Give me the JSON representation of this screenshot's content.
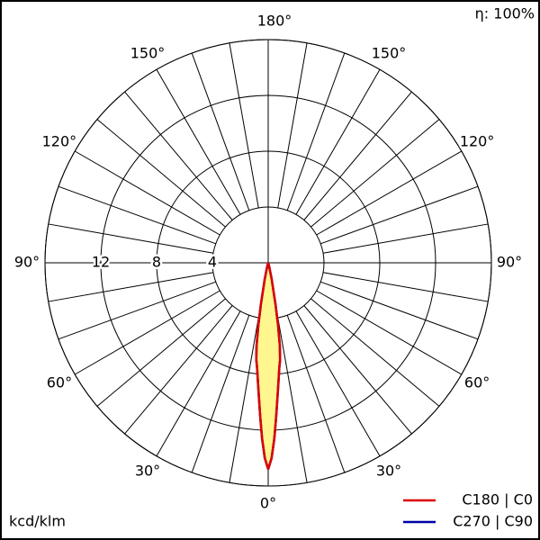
{
  "chart_data": {
    "type": "polar",
    "efficiency": "η: 100%",
    "unit": "kcd/klm",
    "rlim": [
      0,
      16
    ],
    "rticks": [
      4,
      8,
      12,
      16
    ],
    "rtick_labels": [
      "4",
      "8",
      "12",
      null
    ],
    "angle_ticks": [
      {
        "value": 0,
        "label": "0°"
      },
      {
        "value": 30,
        "label": "30°"
      },
      {
        "value": 60,
        "label": "60°"
      },
      {
        "value": 90,
        "label": "90°"
      },
      {
        "value": 120,
        "label": "120°"
      },
      {
        "value": 150,
        "label": "150°"
      },
      {
        "value": 180,
        "label": "180°"
      }
    ],
    "angles": [
      0,
      1,
      2,
      3,
      4,
      5,
      6,
      7,
      8,
      9,
      10,
      12,
      15,
      20
    ],
    "series": [
      {
        "name": "C270 | C90",
        "color": "#0000aa",
        "values": [
          14.8,
          14.0,
          12.6,
          11.0,
          9.6,
          8.5,
          7.6,
          7.0,
          6.0,
          4.5,
          3.0,
          1.2,
          0.3,
          0
        ]
      },
      {
        "name": "C180 | C0",
        "color": "#dd0000",
        "values": [
          14.8,
          14.0,
          12.6,
          11.0,
          9.6,
          8.5,
          7.6,
          7.0,
          6.0,
          4.5,
          3.0,
          1.2,
          0.3,
          0
        ]
      }
    ],
    "fill": "#fff68f"
  }
}
